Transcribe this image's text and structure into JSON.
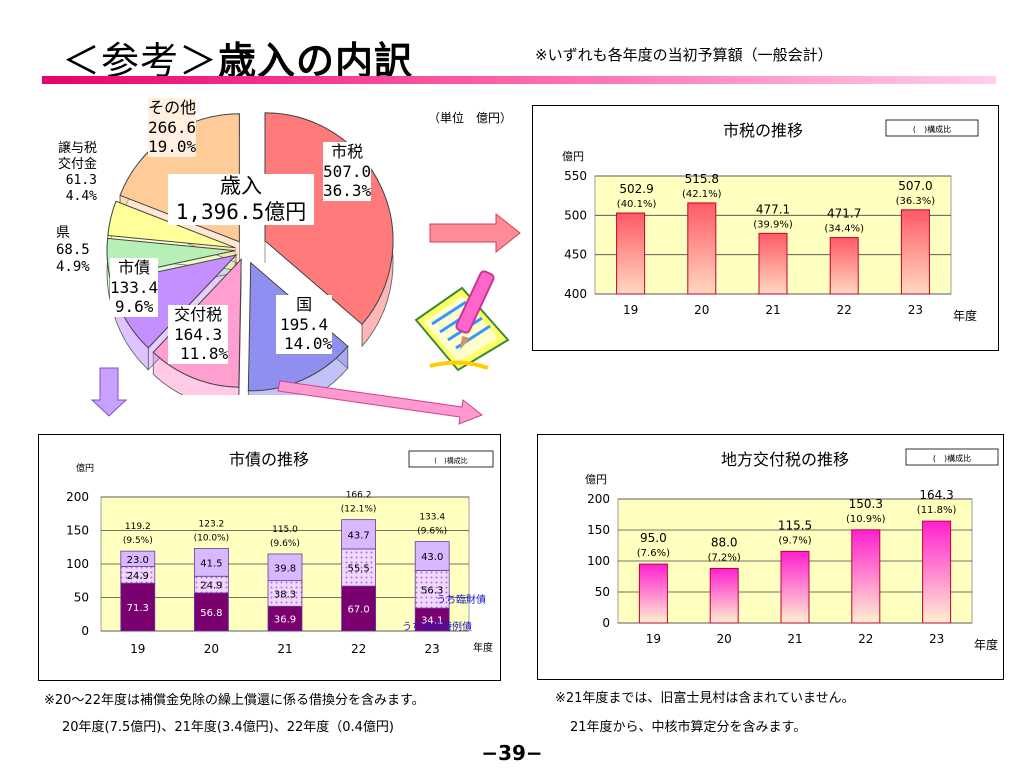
{
  "page": {
    "title_prefix": "＜参考＞",
    "title_main": "歳入の内訳",
    "subtitle": "※いずれも各年度の当初予算額（一般会計）",
    "unit": "（単位　億円）",
    "page_number": "−39−"
  },
  "colors": {
    "accent": "#e8006f",
    "pie_citytax": "#ff7a7a",
    "pie_national": "#8f8ff0",
    "pie_grant": "#ff9fd0",
    "pie_bond": "#c490ff",
    "pie_pref": "#b6f0b6",
    "pie_transfer": "#ffff99",
    "pie_other": "#ffcc99"
  },
  "pie_chart": {
    "center_line1": "歳入",
    "center_line2": "1,396.5億円",
    "slices": [
      {
        "key": "citytax",
        "name": "市税",
        "value": "507.0",
        "pct": "36.3%"
      },
      {
        "key": "national",
        "name": "国",
        "value": "195.4",
        "pct": "14.0%"
      },
      {
        "key": "grant",
        "name": "交付税",
        "value": "164.3",
        "pct": "11.8%"
      },
      {
        "key": "bond",
        "name": "市債",
        "value": "133.4",
        "pct": "9.6%"
      },
      {
        "key": "pref",
        "name": "県",
        "value": "68.5",
        "pct": "4.9%"
      },
      {
        "key": "transfer",
        "name": "譲与税\n交付金",
        "value": "61.3",
        "pct": "4.4%"
      },
      {
        "key": "other",
        "name": "その他",
        "value": "266.6",
        "pct": "19.0%"
      }
    ]
  },
  "chart_data": [
    {
      "type": "bar",
      "title": "市税の推移",
      "ylabel": "億円",
      "xlabel": "年度",
      "legend_note": "(　)構成比",
      "categories": [
        "19",
        "20",
        "21",
        "22",
        "23"
      ],
      "values": [
        502.9,
        515.8,
        477.1,
        471.7,
        507.0
      ],
      "value_labels": [
        "502.9",
        "515.8",
        "477.1",
        "471.7",
        "507.0"
      ],
      "shares": [
        "(40.1%)",
        "(42.1%)",
        "(39.9%)",
        "(34.4%)",
        "(36.3%)"
      ],
      "ylim": [
        400,
        550
      ],
      "yticks": [
        "400",
        "450",
        "500",
        "550"
      ]
    },
    {
      "type": "bar",
      "title": "市債の推移",
      "ylabel": "億円",
      "xlabel": "年度",
      "legend_note": "(　)構成比",
      "categories": [
        "19",
        "20",
        "21",
        "22",
        "23"
      ],
      "totals": [
        "119.2",
        "123.2",
        "115.0",
        "166.2",
        "133.4"
      ],
      "shares": [
        "(9.5%)",
        "(10.0%)",
        "(9.6%)",
        "(12.1%)",
        "(9.6%)"
      ],
      "series": [
        {
          "values": [
            71.3,
            56.8,
            36.9,
            67.0,
            34.1
          ]
        },
        {
          "values": [
            24.9,
            24.9,
            38.3,
            55.5,
            56.3
          ]
        },
        {
          "values": [
            23.0,
            41.5,
            39.8,
            43.7,
            43.0
          ]
        }
      ],
      "segment_labels": [
        [
          "71.3",
          "56.8",
          "36.9",
          "67.0",
          "34.1"
        ],
        [
          "24.9",
          "24.9",
          "38.3",
          "55.5",
          "56.3"
        ],
        [
          "23.0",
          "41.5",
          "39.8",
          "43.7",
          "43.0"
        ]
      ],
      "annotations": [
        "うち臨財債",
        "うち合併特例債"
      ],
      "ylim": [
        0,
        200
      ],
      "yticks": [
        "0",
        "50",
        "100",
        "150",
        "200"
      ]
    },
    {
      "type": "bar",
      "title": "地方交付税の推移",
      "ylabel": "億円",
      "xlabel": "年度",
      "legend_note": "(　)構成比",
      "categories": [
        "19",
        "20",
        "21",
        "22",
        "23"
      ],
      "values": [
        95.0,
        88.0,
        115.5,
        150.3,
        164.3
      ],
      "value_labels": [
        "95.0",
        "88.0",
        "115.5",
        "150.3",
        "164.3"
      ],
      "shares": [
        "(7.6%)",
        "(7.2%)",
        "(9.7%)",
        "(10.9%)",
        "(11.8%)"
      ],
      "ylim": [
        0,
        200
      ],
      "yticks": [
        "0",
        "50",
        "100",
        "150",
        "200"
      ]
    }
  ],
  "footnotes": {
    "bond_note_line1": "※20～22年度は補償金免除の繰上償還に係る借換分を含みます。",
    "bond_note_line2": "20年度(7.5億円)、21年度(3.4億円)、22年度（0.4億円)",
    "grant_note_line1": "※21年度までは、旧富士見村は含まれていません。",
    "grant_note_line2": "21年度から、中核市算定分を含みます。"
  }
}
